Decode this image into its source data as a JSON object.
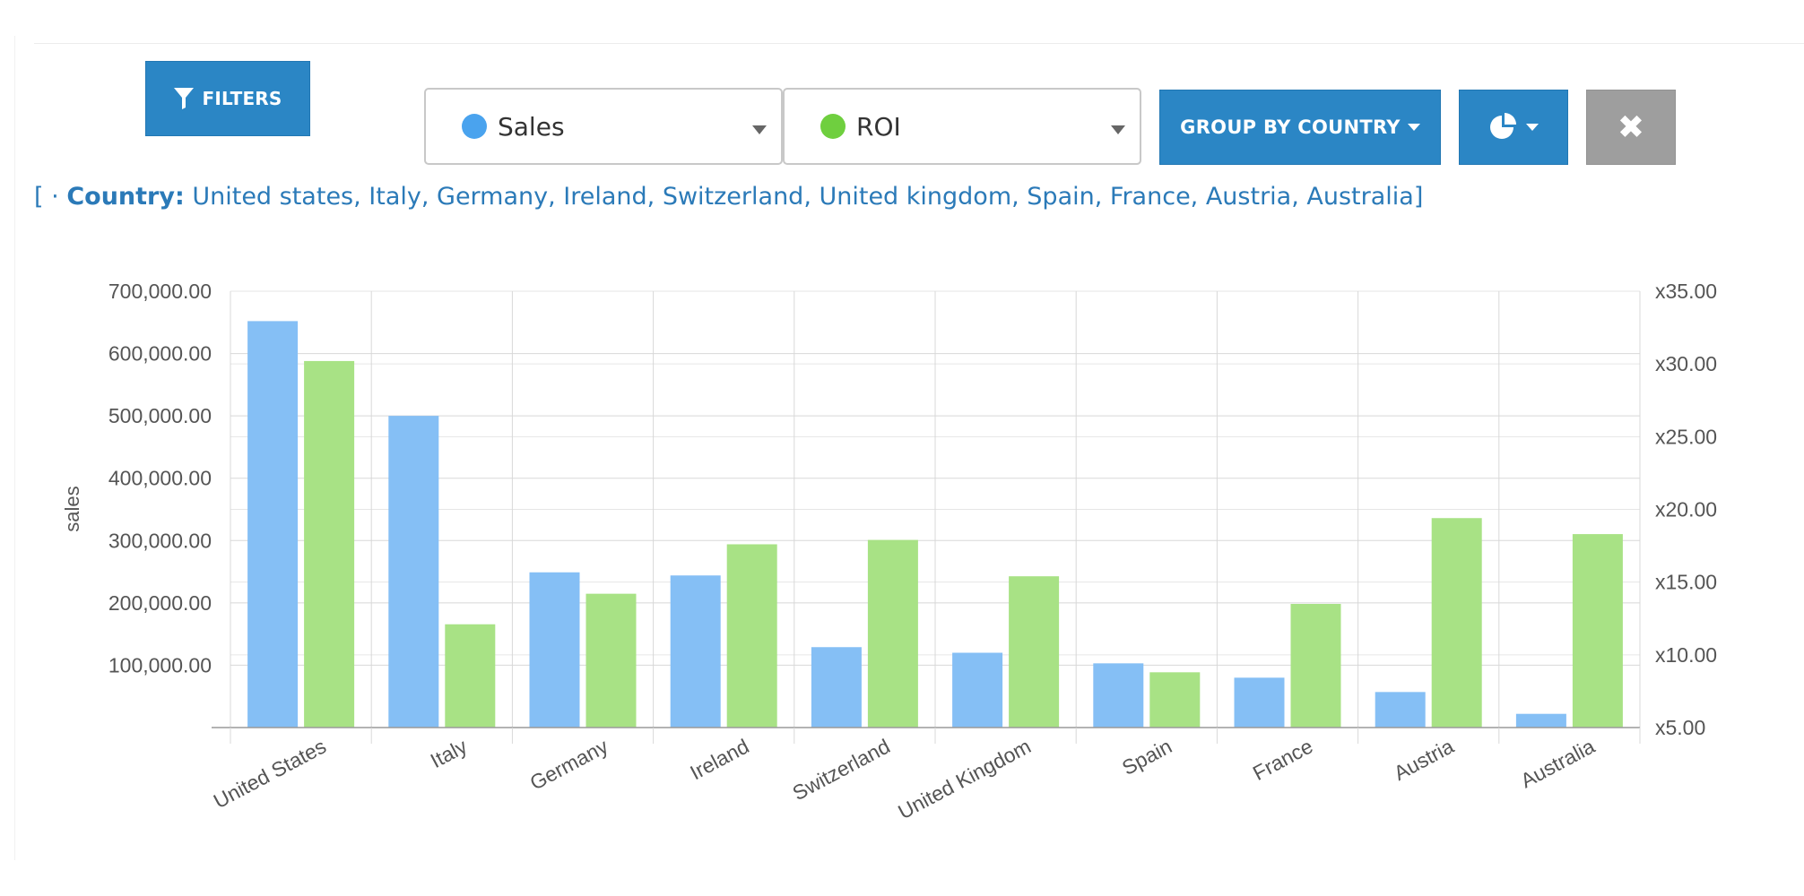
{
  "toolbar": {
    "filters_label": "FILTERS",
    "metric_left": {
      "label": "Sales",
      "color": "#4aa3ee"
    },
    "metric_right": {
      "label": "ROI",
      "color": "#6fcf3f"
    },
    "group_by_label": "GROUP BY COUNTRY",
    "chart_type_icon": "pie-chart-icon",
    "close_icon": "close-icon",
    "close_glyph": "✖"
  },
  "filter_summary": {
    "open": "[",
    "bullet": "·",
    "key": "Country:",
    "values": "United states, Italy, Germany, Ireland, Switzerland, United kingdom, Spain, France, Austria, Australia",
    "close": "]"
  },
  "chart_data": {
    "type": "bar",
    "categories": [
      "United States",
      "Italy",
      "Germany",
      "Ireland",
      "Switzerland",
      "United Kingdom",
      "Spain",
      "France",
      "Austria",
      "Australia"
    ],
    "series": [
      {
        "name": "Sales",
        "axis": "left",
        "color": "#85bff5",
        "values": [
          652000,
          500000,
          249000,
          244000,
          129000,
          120000,
          103000,
          80000,
          57000,
          22000
        ]
      },
      {
        "name": "ROI",
        "axis": "right",
        "color": "#a8e285",
        "values": [
          30.2,
          12.1,
          14.2,
          17.6,
          17.9,
          15.4,
          8.8,
          13.5,
          19.4,
          18.3
        ]
      }
    ],
    "ylabel": "sales",
    "y_left": {
      "min": 0,
      "max": 700000,
      "ticks": [
        100000,
        200000,
        300000,
        400000,
        500000,
        600000,
        700000
      ],
      "tick_labels": [
        "100,000.00",
        "200,000.00",
        "300,000.00",
        "400,000.00",
        "500,000.00",
        "600,000.00",
        "700,000.00"
      ]
    },
    "y_right": {
      "min": 5,
      "max": 35,
      "ticks": [
        5,
        10,
        15,
        20,
        25,
        30,
        35
      ],
      "tick_labels": [
        "x5.00",
        "x10.00",
        "x15.00",
        "x20.00",
        "x25.00",
        "x30.00",
        "x35.00"
      ]
    },
    "grid": true
  }
}
